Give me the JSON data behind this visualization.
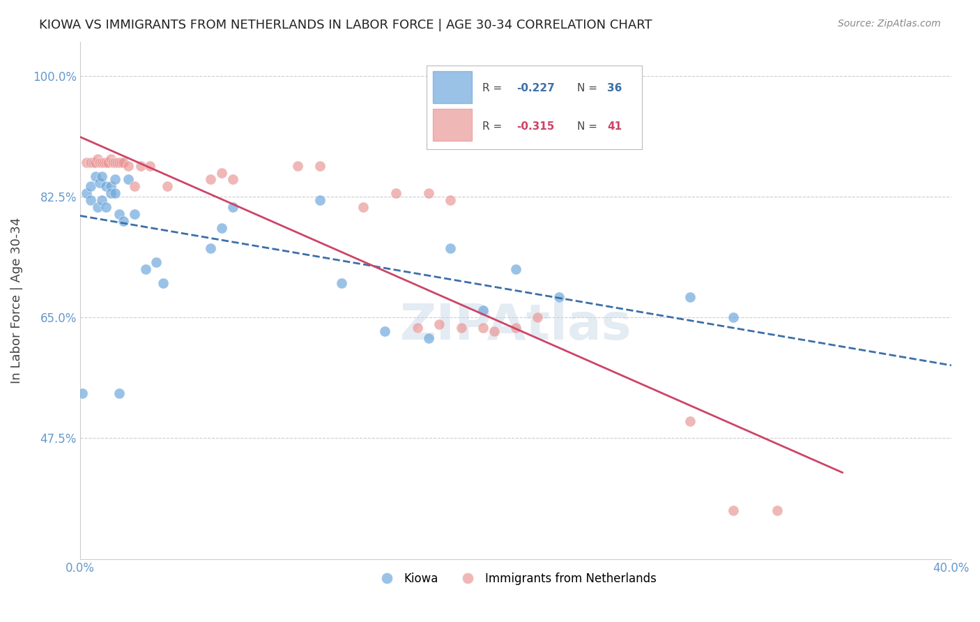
{
  "title": "KIOWA VS IMMIGRANTS FROM NETHERLANDS IN LABOR FORCE | AGE 30-34 CORRELATION CHART",
  "source": "Source: ZipAtlas.com",
  "xlabel": "",
  "ylabel": "In Labor Force | Age 30-34",
  "xlim": [
    0.0,
    0.4
  ],
  "ylim": [
    0.3,
    1.05
  ],
  "yticks": [
    0.475,
    0.65,
    0.825,
    1.0
  ],
  "ytick_labels": [
    "47.5%",
    "65.0%",
    "82.5%",
    "100.0%"
  ],
  "xticks": [
    0.0,
    0.1,
    0.2,
    0.3,
    0.4
  ],
  "xtick_labels": [
    "0.0%",
    "",
    "",
    "",
    "40.0%"
  ],
  "background_color": "#ffffff",
  "grid_color": "#cccccc",
  "legend_r1": "R = -0.227",
  "legend_n1": "N = 36",
  "legend_r2": "R = -0.315",
  "legend_n2": "N = 41",
  "blue_color": "#6fa8dc",
  "pink_color": "#ea9999",
  "blue_line_color": "#3d6fa8",
  "pink_line_color": "#cc4466",
  "axis_label_color": "#6699cc",
  "title_color": "#222222",
  "kiowa_x": [
    0.001,
    0.018,
    0.003,
    0.005,
    0.007,
    0.009,
    0.01,
    0.012,
    0.014,
    0.014,
    0.016,
    0.016,
    0.005,
    0.008,
    0.01,
    0.012,
    0.018,
    0.02,
    0.022,
    0.025,
    0.03,
    0.035,
    0.038,
    0.06,
    0.065,
    0.07,
    0.11,
    0.12,
    0.14,
    0.16,
    0.17,
    0.185,
    0.2,
    0.22,
    0.28,
    0.3
  ],
  "kiowa_y": [
    0.54,
    0.54,
    0.83,
    0.84,
    0.855,
    0.845,
    0.855,
    0.84,
    0.84,
    0.83,
    0.83,
    0.85,
    0.82,
    0.81,
    0.82,
    0.81,
    0.8,
    0.79,
    0.85,
    0.8,
    0.72,
    0.73,
    0.7,
    0.75,
    0.78,
    0.81,
    0.82,
    0.7,
    0.63,
    0.62,
    0.75,
    0.66,
    0.72,
    0.68,
    0.68,
    0.65
  ],
  "netherlands_x": [
    0.003,
    0.005,
    0.006,
    0.007,
    0.008,
    0.009,
    0.01,
    0.011,
    0.012,
    0.013,
    0.014,
    0.015,
    0.016,
    0.017,
    0.018,
    0.019,
    0.02,
    0.022,
    0.025,
    0.028,
    0.032,
    0.04,
    0.06,
    0.065,
    0.07,
    0.1,
    0.11,
    0.13,
    0.145,
    0.16,
    0.17,
    0.185,
    0.28,
    0.3,
    0.32,
    0.155,
    0.165,
    0.175,
    0.19,
    0.2,
    0.21
  ],
  "netherlands_y": [
    0.875,
    0.875,
    0.875,
    0.875,
    0.88,
    0.875,
    0.875,
    0.875,
    0.875,
    0.875,
    0.88,
    0.875,
    0.875,
    0.875,
    0.875,
    0.875,
    0.875,
    0.87,
    0.84,
    0.87,
    0.87,
    0.84,
    0.85,
    0.86,
    0.85,
    0.87,
    0.87,
    0.81,
    0.83,
    0.83,
    0.82,
    0.635,
    0.5,
    0.37,
    0.37,
    0.635,
    0.64,
    0.635,
    0.63,
    0.635,
    0.65
  ],
  "watermark": "ZIPAtlas"
}
